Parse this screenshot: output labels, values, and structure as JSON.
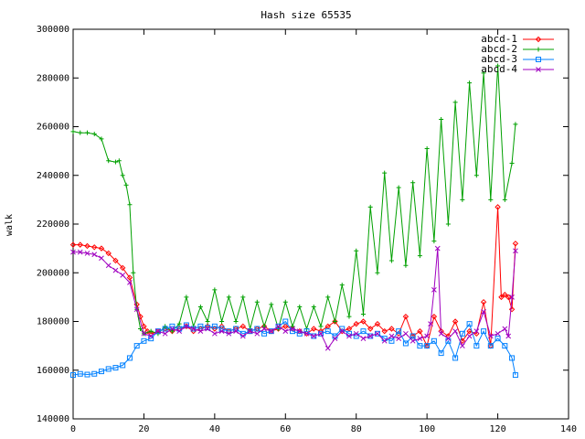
{
  "chart_data": {
    "type": "line",
    "title": "Hash size 65535",
    "xlabel": "",
    "ylabel": "walk",
    "xlim": [
      0,
      140
    ],
    "ylim": [
      140000,
      300000
    ],
    "x_ticks": [
      0,
      20,
      40,
      60,
      80,
      100,
      120,
      140
    ],
    "y_ticks": [
      140000,
      160000,
      180000,
      200000,
      220000,
      240000,
      260000,
      280000,
      300000
    ],
    "grid": false,
    "legend_position": "top-right",
    "series": [
      {
        "name": "abcd-1",
        "color": "#ff0000",
        "marker": "diamond",
        "x": [
          0,
          2,
          4,
          6,
          8,
          10,
          12,
          14,
          16,
          18,
          19,
          20,
          21,
          22,
          24,
          26,
          28,
          30,
          32,
          34,
          36,
          38,
          40,
          42,
          44,
          46,
          48,
          50,
          52,
          54,
          56,
          58,
          60,
          62,
          64,
          66,
          68,
          70,
          72,
          74,
          76,
          78,
          80,
          82,
          84,
          86,
          88,
          90,
          92,
          94,
          96,
          98,
          100,
          102,
          104,
          106,
          108,
          110,
          112,
          114,
          116,
          118,
          120,
          121,
          122,
          123,
          124,
          125
        ],
        "values": [
          211500,
          211500,
          211000,
          210500,
          210000,
          208000,
          205000,
          202000,
          198000,
          187000,
          182000,
          178000,
          176000,
          175000,
          176000,
          177000,
          176000,
          177000,
          178000,
          176000,
          177000,
          178000,
          177000,
          178000,
          176000,
          177000,
          178000,
          176000,
          177000,
          178000,
          176000,
          177000,
          178000,
          177000,
          176000,
          175000,
          177000,
          176000,
          178000,
          180000,
          176000,
          177000,
          179000,
          180000,
          177000,
          179000,
          176000,
          177000,
          175000,
          182000,
          174000,
          176000,
          170000,
          182000,
          176000,
          174000,
          180000,
          172000,
          176000,
          175000,
          188000,
          170000,
          227000,
          190000,
          191000,
          190000,
          185000,
          212000
        ]
      },
      {
        "name": "abcd-2",
        "color": "#00a000",
        "marker": "plus",
        "x": [
          0,
          2,
          4,
          6,
          8,
          10,
          12,
          13,
          14,
          15,
          16,
          17,
          18,
          19,
          20,
          22,
          24,
          26,
          28,
          30,
          32,
          34,
          36,
          38,
          40,
          42,
          44,
          46,
          48,
          50,
          52,
          54,
          56,
          58,
          60,
          62,
          64,
          66,
          68,
          70,
          72,
          74,
          76,
          78,
          80,
          82,
          84,
          86,
          88,
          90,
          92,
          94,
          96,
          98,
          100,
          102,
          104,
          106,
          108,
          110,
          112,
          114,
          116,
          118,
          120,
          122,
          124,
          125
        ],
        "values": [
          258000,
          257500,
          257500,
          257000,
          255000,
          246000,
          245500,
          246000,
          240000,
          236000,
          228000,
          200000,
          185000,
          177000,
          175000,
          176000,
          175000,
          178000,
          176000,
          179000,
          190000,
          178000,
          186000,
          180000,
          193000,
          180000,
          190000,
          180000,
          190000,
          177000,
          188000,
          178000,
          187000,
          177000,
          188000,
          178000,
          186000,
          177000,
          186000,
          178000,
          190000,
          180000,
          195000,
          182000,
          209000,
          183000,
          227000,
          200000,
          241000,
          205000,
          235000,
          203000,
          237000,
          207000,
          251000,
          213000,
          263000,
          220000,
          270000,
          230000,
          278000,
          240000,
          282000,
          230000,
          285000,
          230000,
          245000,
          261000
        ]
      },
      {
        "name": "abcd-3",
        "color": "#0080ff",
        "marker": "square",
        "x": [
          0,
          2,
          4,
          6,
          8,
          10,
          12,
          14,
          16,
          18,
          20,
          22,
          24,
          26,
          28,
          30,
          32,
          34,
          36,
          38,
          40,
          42,
          44,
          46,
          48,
          50,
          52,
          54,
          56,
          58,
          60,
          62,
          64,
          66,
          68,
          70,
          72,
          74,
          76,
          78,
          80,
          82,
          84,
          86,
          88,
          90,
          92,
          94,
          96,
          98,
          100,
          102,
          104,
          106,
          108,
          110,
          112,
          114,
          116,
          118,
          120,
          122,
          124,
          125
        ],
        "values": [
          158000,
          158500,
          158200,
          158500,
          159500,
          160500,
          161000,
          162000,
          165000,
          170000,
          172000,
          173000,
          176000,
          177000,
          178000,
          177000,
          178500,
          177000,
          178000,
          177500,
          178000,
          177000,
          176000,
          177000,
          175000,
          176000,
          177000,
          175000,
          176000,
          178000,
          180000,
          176000,
          175000,
          176000,
          174000,
          175000,
          176000,
          174000,
          177000,
          175000,
          174000,
          176000,
          174000,
          175000,
          173000,
          172000,
          176000,
          171000,
          174000,
          170000,
          170000,
          172000,
          167000,
          172000,
          165000,
          175000,
          179000,
          170000,
          176000,
          170000,
          173000,
          170000,
          165000,
          158000
        ]
      },
      {
        "name": "abcd-4",
        "color": "#a000c0",
        "marker": "cross",
        "x": [
          0,
          2,
          4,
          6,
          8,
          10,
          12,
          14,
          16,
          18,
          20,
          22,
          24,
          26,
          28,
          30,
          32,
          34,
          36,
          38,
          40,
          42,
          44,
          46,
          48,
          50,
          52,
          54,
          56,
          58,
          60,
          62,
          64,
          66,
          68,
          70,
          72,
          74,
          76,
          78,
          80,
          82,
          84,
          86,
          88,
          90,
          92,
          94,
          96,
          98,
          100,
          101,
          102,
          103,
          104,
          106,
          108,
          110,
          112,
          114,
          116,
          118,
          120,
          122,
          123,
          124,
          125
        ],
        "values": [
          208500,
          208500,
          208000,
          207500,
          206000,
          203000,
          201000,
          199000,
          196000,
          185000,
          175000,
          174000,
          176000,
          175000,
          177000,
          176000,
          178000,
          177000,
          176000,
          177000,
          175000,
          176000,
          175000,
          176000,
          174000,
          176000,
          175000,
          177000,
          176000,
          178000,
          176000,
          177000,
          176000,
          175000,
          174000,
          175000,
          169000,
          173000,
          176000,
          174000,
          175000,
          173000,
          174000,
          175000,
          172000,
          174000,
          173000,
          175000,
          172000,
          173000,
          174000,
          179000,
          193000,
          210000,
          175000,
          173000,
          176000,
          170000,
          174000,
          176000,
          184000,
          174000,
          175000,
          177000,
          174000,
          190000,
          209000
        ]
      }
    ]
  }
}
